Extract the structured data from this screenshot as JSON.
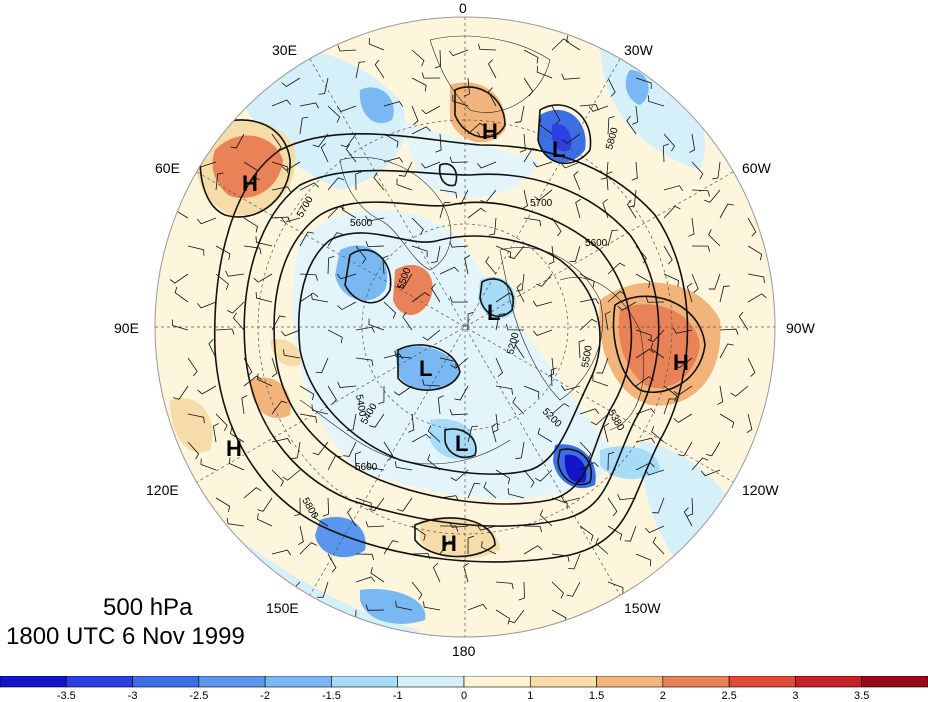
{
  "title": {
    "level": "500 hPa",
    "time": "1800 UTC 6 Nov 1999"
  },
  "longitude_labels": [
    "0",
    "30W",
    "60W",
    "90W",
    "120W",
    "150W",
    "180",
    "150E",
    "120E",
    "90E",
    "60E",
    "30E"
  ],
  "highs_lows": [
    {
      "type": "H"
    },
    {
      "type": "L"
    },
    {
      "type": "H"
    },
    {
      "type": "H"
    },
    {
      "type": "L"
    },
    {
      "type": "L"
    },
    {
      "type": "H"
    },
    {
      "type": "L"
    },
    {
      "type": "H"
    },
    {
      "type": "L"
    }
  ],
  "contour_labels": [
    "5700",
    "5800",
    "5600",
    "5600",
    "5500",
    "5400",
    "5200",
    "5400",
    "5200",
    "5500",
    "5380",
    "5700",
    "5800",
    "5600"
  ],
  "colorbar": {
    "ticks": [
      "-3.5",
      "-3",
      "-2.5",
      "-2",
      "-1.5",
      "-1",
      "0",
      "1",
      "1.5",
      "2",
      "2.5",
      "3",
      "3.5"
    ],
    "colors": [
      "#1414c8",
      "#2a40e0",
      "#3c6ee6",
      "#5a96ee",
      "#7ab8f4",
      "#a6dcf8",
      "#d6f0fa",
      "#fdf4d6",
      "#f6dca8",
      "#f2b47a",
      "#ea8258",
      "#e04a3a",
      "#c8202a",
      "#9a0a1a"
    ]
  }
}
